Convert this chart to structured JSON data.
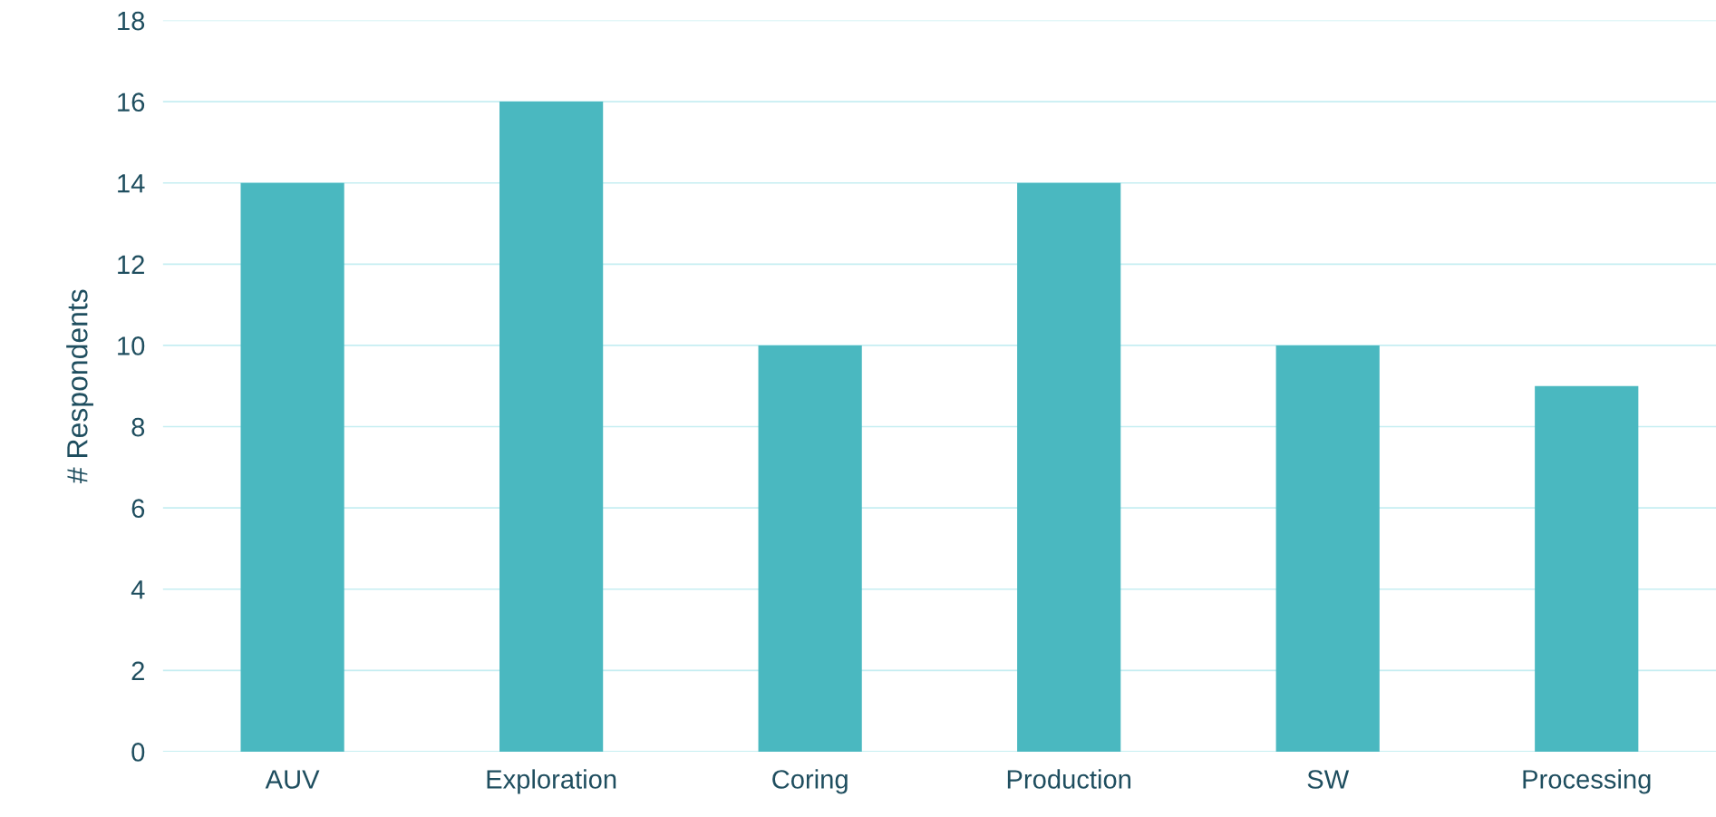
{
  "chart_data": {
    "type": "bar",
    "ylabel": "# Respondents",
    "categories": [
      "AUV",
      "Exploration",
      "Coring",
      "Production",
      "SW",
      "Processing"
    ],
    "values": [
      14,
      16,
      10,
      14,
      10,
      9
    ],
    "color": "#4ab8c0",
    "ylim": [
      0,
      18
    ],
    "yticks": [
      0,
      2,
      4,
      6,
      8,
      10,
      12,
      14,
      16,
      18
    ],
    "grid": "y",
    "legend": false
  }
}
